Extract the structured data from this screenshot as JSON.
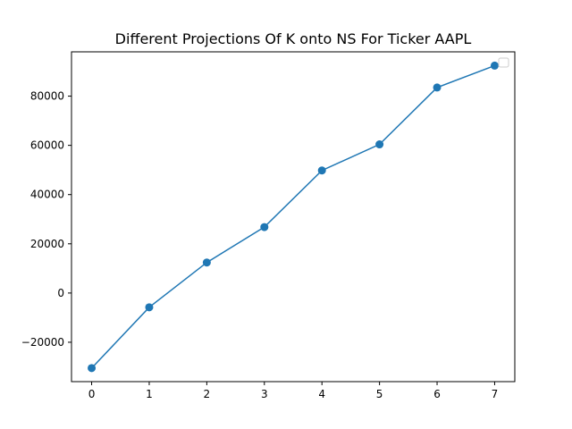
{
  "chart_data": {
    "type": "line",
    "title": "Different Projections Of K onto NS For Ticker AAPL",
    "xlabel": "",
    "ylabel": "",
    "x": [
      0,
      1,
      2,
      3,
      4,
      5,
      6,
      7
    ],
    "series": [
      {
        "values": [
          -30500,
          -5800,
          12400,
          26800,
          49800,
          60400,
          83500,
          92400
        ],
        "color": "#1f77b4",
        "marker": "circle"
      }
    ],
    "xlim": [
      -0.35,
      7.35
    ],
    "ylim": [
      -36000,
      98000
    ],
    "x_ticks": [
      0,
      1,
      2,
      3,
      4,
      5,
      6,
      7
    ],
    "x_tick_labels": [
      "0",
      "1",
      "2",
      "3",
      "4",
      "5",
      "6",
      "7"
    ],
    "y_ticks": [
      -20000,
      0,
      20000,
      40000,
      60000,
      80000
    ],
    "y_tick_labels": [
      "−20000",
      "0",
      "20000",
      "40000",
      "60000",
      "80000"
    ],
    "grid": false,
    "legend": {
      "position": "top-right",
      "entries": []
    }
  }
}
